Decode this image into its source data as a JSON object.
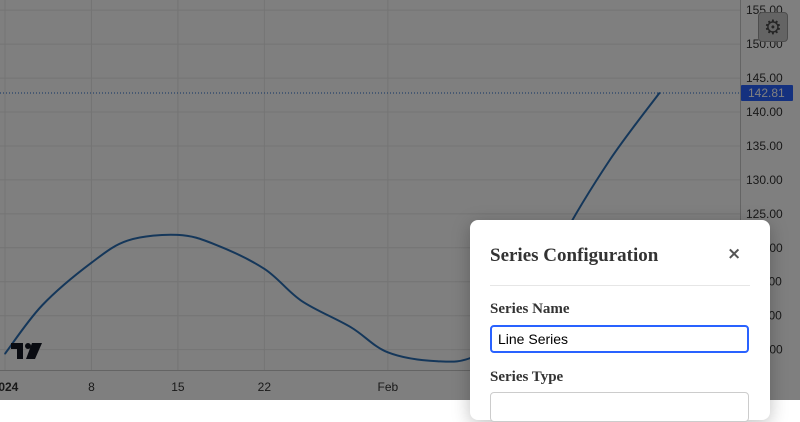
{
  "chart_data": {
    "type": "line",
    "x": [
      "2024-01-01",
      "2024-01-04",
      "2024-01-08",
      "2024-01-11",
      "2024-01-15",
      "2024-01-18",
      "2024-01-22",
      "2024-01-25",
      "2024-01-29",
      "2024-02-01",
      "2024-02-05",
      "2024-02-08",
      "2024-02-12",
      "2024-02-15",
      "2024-02-19",
      "2024-02-23"
    ],
    "y": [
      104.4,
      111.5,
      117.8,
      121.1,
      121.9,
      120.5,
      116.9,
      112.2,
      108.3,
      104.6,
      103.3,
      104.0,
      109.0,
      121.0,
      133.0,
      142.81
    ],
    "xticks": [
      "2024",
      "8",
      "15",
      "22",
      "Feb"
    ],
    "yticks": [
      "155.00",
      "150.00",
      "145.00",
      "140.00",
      "135.00",
      "130.00",
      "125.00",
      "120.00",
      "115.00",
      "110.00",
      "105.00"
    ],
    "ylim": [
      102,
      156.5
    ],
    "last_value_label": "142.81",
    "grid": true,
    "colors": {
      "line": "#2a6eb5",
      "price_tag": "#2962ff",
      "grid": "#e8e8e8",
      "crosshair": "#1f66c9"
    }
  },
  "settings_button": {
    "icon": "gear-icon"
  },
  "watermark": {
    "icon": "tradingview-logo"
  },
  "modal": {
    "title": "Series Configuration",
    "close_label": "×",
    "series_name_label": "Series Name",
    "series_name_value": "Line Series",
    "series_type_label": "Series Type"
  }
}
